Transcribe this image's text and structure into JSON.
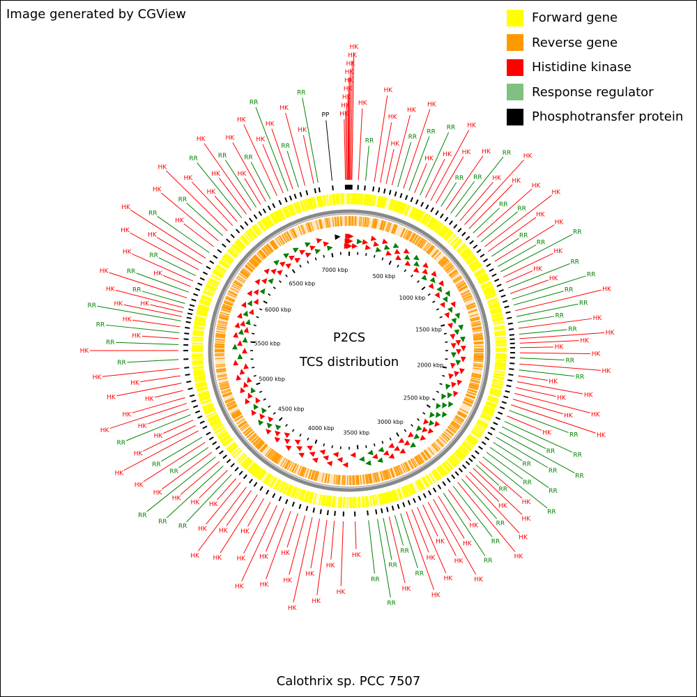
{
  "credit": "Image generated by CGView",
  "genome_name": "Calothrix sp. PCC 7507",
  "center": {
    "line1": "P2CS",
    "line2": "TCS distribution"
  },
  "genome_length_kbp": 7200,
  "colors": {
    "forward": "#ffff00",
    "reverse": "#ff9900",
    "hk": "#ff0000",
    "rr": "#008000",
    "rr_legend": "#80c080",
    "pp": "#000000",
    "backbone": "#888888"
  },
  "legend": [
    {
      "label": "Forward gene",
      "color": "#ffff00"
    },
    {
      "label": "Reverse gene",
      "color": "#ff9900"
    },
    {
      "label": "Histidine kinase",
      "color": "#ff0000"
    },
    {
      "label": "Response regulator",
      "color": "#80c080"
    },
    {
      "label": "Phosphotransfer protein",
      "color": "#000000"
    }
  ],
  "ticks": [
    {
      "kbp": 500,
      "label": "500 kbp"
    },
    {
      "kbp": 1000,
      "label": "1000 kbp"
    },
    {
      "kbp": 1500,
      "label": "1500 kbp"
    },
    {
      "kbp": 2000,
      "label": "2000 kbp"
    },
    {
      "kbp": 2500,
      "label": "2500 kbp"
    },
    {
      "kbp": 3000,
      "label": "3000 kbp"
    },
    {
      "kbp": 3500,
      "label": "3500 kbp"
    },
    {
      "kbp": 4000,
      "label": "4000 kbp"
    },
    {
      "kbp": 4500,
      "label": "4500 kbp"
    },
    {
      "kbp": 5000,
      "label": "5000 kbp"
    },
    {
      "kbp": 5500,
      "label": "5500 kbp"
    },
    {
      "kbp": 6000,
      "label": "6000 kbp"
    },
    {
      "kbp": 6500,
      "label": "6500 kbp"
    },
    {
      "kbp": 7000,
      "label": "7000 kbp"
    }
  ],
  "features": [
    {
      "pos": 7175,
      "type": "HK",
      "label": "HK"
    },
    {
      "pos": 7182,
      "type": "HK",
      "label": "HK"
    },
    {
      "pos": 7188,
      "type": "HK",
      "label": "HK"
    },
    {
      "pos": 7194,
      "type": "HK",
      "label": "HK"
    },
    {
      "pos": 7198,
      "type": "HK",
      "label": "HK"
    },
    {
      "pos": 7200,
      "type": "HK",
      "label": "HK"
    },
    {
      "pos": 5,
      "type": "HK",
      "label": "HK"
    },
    {
      "pos": 12,
      "type": "HK",
      "label": "HK"
    },
    {
      "pos": 18,
      "type": "HK",
      "label": "HK"
    },
    {
      "pos": 62,
      "type": "HK",
      "label": "HK"
    },
    {
      "pos": 110,
      "type": "RR",
      "label": "RR"
    },
    {
      "pos": 7085,
      "type": "PP",
      "label": "PP"
    },
    {
      "pos": 6990,
      "type": "RR",
      "label": "RR"
    },
    {
      "pos": 6960,
      "type": "HK",
      "label": "HK"
    },
    {
      "pos": 6900,
      "type": "HK",
      "label": "HK"
    },
    {
      "pos": 6855,
      "type": "RR",
      "label": "RR"
    },
    {
      "pos": 6815,
      "type": "HK",
      "label": "HK"
    },
    {
      "pos": 6780,
      "type": "RR",
      "label": "RR"
    },
    {
      "pos": 6745,
      "type": "HK",
      "label": "HK"
    },
    {
      "pos": 6700,
      "type": "HK",
      "label": "HK"
    },
    {
      "pos": 6650,
      "type": "RR",
      "label": "RR"
    },
    {
      "pos": 6615,
      "type": "HK",
      "label": "HK"
    },
    {
      "pos": 6575,
      "type": "HK",
      "label": "HK"
    },
    {
      "pos": 6540,
      "type": "RR",
      "label": "RR"
    },
    {
      "pos": 6500,
      "type": "HK",
      "label": "HK"
    },
    {
      "pos": 6460,
      "type": "HK",
      "label": "HK"
    },
    {
      "pos": 6420,
      "type": "RR",
      "label": "RR"
    },
    {
      "pos": 6380,
      "type": "HK",
      "label": "HK"
    },
    {
      "pos": 6340,
      "type": "HK",
      "label": "HK"
    },
    {
      "pos": 6290,
      "type": "HK",
      "label": "HK"
    },
    {
      "pos": 6245,
      "type": "RR",
      "label": "RR"
    },
    {
      "pos": 6200,
      "type": "HK",
      "label": "HK"
    },
    {
      "pos": 6150,
      "type": "HK",
      "label": "HK"
    },
    {
      "pos": 6100,
      "type": "RR",
      "label": "RR"
    },
    {
      "pos": 6055,
      "type": "HK",
      "label": "HK"
    },
    {
      "pos": 6010,
      "type": "HK",
      "label": "HK"
    },
    {
      "pos": 5965,
      "type": "HK",
      "label": "HK"
    },
    {
      "pos": 5920,
      "type": "RR",
      "label": "RR"
    },
    {
      "pos": 5880,
      "type": "HK",
      "label": "HK"
    },
    {
      "pos": 5840,
      "type": "HK",
      "label": "HK"
    },
    {
      "pos": 5800,
      "type": "RR",
      "label": "RR"
    },
    {
      "pos": 5760,
      "type": "HK",
      "label": "HK"
    },
    {
      "pos": 5720,
      "type": "RR",
      "label": "RR"
    },
    {
      "pos": 5690,
      "type": "HK",
      "label": "HK"
    },
    {
      "pos": 5660,
      "type": "HK",
      "label": "HK"
    },
    {
      "pos": 5630,
      "type": "HK",
      "label": "HK"
    },
    {
      "pos": 5600,
      "type": "RR",
      "label": "RR"
    },
    {
      "pos": 5560,
      "type": "HK",
      "label": "HK"
    },
    {
      "pos": 5520,
      "type": "RR",
      "label": "RR"
    },
    {
      "pos": 5480,
      "type": "HK",
      "label": "HK"
    },
    {
      "pos": 5440,
      "type": "RR",
      "label": "RR"
    },
    {
      "pos": 5400,
      "type": "HK",
      "label": "HK"
    },
    {
      "pos": 5340,
      "type": "RR",
      "label": "RR"
    },
    {
      "pos": 5280,
      "type": "HK",
      "label": "HK"
    },
    {
      "pos": 5230,
      "type": "HK",
      "label": "HK"
    },
    {
      "pos": 5180,
      "type": "HK",
      "label": "HK"
    },
    {
      "pos": 5130,
      "type": "HK",
      "label": "HK"
    },
    {
      "pos": 5080,
      "type": "HK",
      "label": "HK"
    },
    {
      "pos": 5040,
      "type": "HK",
      "label": "HK"
    },
    {
      "pos": 5000,
      "type": "HK",
      "label": "HK"
    },
    {
      "pos": 4960,
      "type": "RR",
      "label": "RR"
    },
    {
      "pos": 4920,
      "type": "HK",
      "label": "HK"
    },
    {
      "pos": 4880,
      "type": "HK",
      "label": "HK"
    },
    {
      "pos": 4840,
      "type": "HK",
      "label": "HK"
    },
    {
      "pos": 4790,
      "type": "RR",
      "label": "RR"
    },
    {
      "pos": 4750,
      "type": "HK",
      "label": "HK"
    },
    {
      "pos": 4710,
      "type": "RR",
      "label": "RR"
    },
    {
      "pos": 4670,
      "type": "HK",
      "label": "HK"
    },
    {
      "pos": 4630,
      "type": "RR",
      "label": "RR"
    },
    {
      "pos": 4590,
      "type": "HK",
      "label": "HK"
    },
    {
      "pos": 4550,
      "type": "RR",
      "label": "RR"
    },
    {
      "pos": 4510,
      "type": "HK",
      "label": "HK"
    },
    {
      "pos": 4470,
      "type": "RR",
      "label": "RR"
    },
    {
      "pos": 4430,
      "type": "HK",
      "label": "HK"
    },
    {
      "pos": 4390,
      "type": "HK",
      "label": "HK"
    },
    {
      "pos": 4340,
      "type": "HK",
      "label": "HK"
    },
    {
      "pos": 4300,
      "type": "HK",
      "label": "HK"
    },
    {
      "pos": 4250,
      "type": "HK",
      "label": "HK"
    },
    {
      "pos": 4200,
      "type": "HK",
      "label": "HK"
    },
    {
      "pos": 4150,
      "type": "HK",
      "label": "HK"
    },
    {
      "pos": 4100,
      "type": "HK",
      "label": "HK"
    },
    {
      "pos": 4050,
      "type": "HK",
      "label": "HK"
    },
    {
      "pos": 4000,
      "type": "HK",
      "label": "HK"
    },
    {
      "pos": 3950,
      "type": "HK",
      "label": "HK"
    },
    {
      "pos": 3900,
      "type": "HK",
      "label": "HK"
    },
    {
      "pos": 3850,
      "type": "HK",
      "label": "HK"
    },
    {
      "pos": 3800,
      "type": "HK",
      "label": "HK"
    },
    {
      "pos": 3750,
      "type": "HK",
      "label": "HK"
    },
    {
      "pos": 3700,
      "type": "HK",
      "label": "HK"
    },
    {
      "pos": 3640,
      "type": "HK",
      "label": "HK"
    },
    {
      "pos": 3560,
      "type": "HK",
      "label": "HK"
    },
    {
      "pos": 3470,
      "type": "RR",
      "label": "RR"
    },
    {
      "pos": 3410,
      "type": "RR",
      "label": "RR"
    },
    {
      "pos": 3370,
      "type": "RR",
      "label": "RR"
    },
    {
      "pos": 3330,
      "type": "HK",
      "label": "HK"
    },
    {
      "pos": 3290,
      "type": "RR",
      "label": "RR"
    },
    {
      "pos": 3250,
      "type": "RR",
      "label": "RR"
    },
    {
      "pos": 3210,
      "type": "HK",
      "label": "HK"
    },
    {
      "pos": 3170,
      "type": "HK",
      "label": "HK"
    },
    {
      "pos": 3130,
      "type": "HK",
      "label": "HK"
    },
    {
      "pos": 3090,
      "type": "HK",
      "label": "HK"
    },
    {
      "pos": 3050,
      "type": "HK",
      "label": "HK"
    },
    {
      "pos": 3010,
      "type": "HK",
      "label": "HK"
    },
    {
      "pos": 2970,
      "type": "HK",
      "label": "HK"
    },
    {
      "pos": 2930,
      "type": "RR",
      "label": "RR"
    },
    {
      "pos": 2890,
      "type": "HK",
      "label": "HK"
    },
    {
      "pos": 2850,
      "type": "RR",
      "label": "RR"
    },
    {
      "pos": 2810,
      "type": "HK",
      "label": "HK"
    },
    {
      "pos": 2775,
      "type": "RR",
      "label": "RR"
    },
    {
      "pos": 2740,
      "type": "HK",
      "label": "HK"
    },
    {
      "pos": 2705,
      "type": "HK",
      "label": "HK"
    },
    {
      "pos": 2670,
      "type": "HK",
      "label": "HK"
    },
    {
      "pos": 2640,
      "type": "RR",
      "label": "RR"
    },
    {
      "pos": 2610,
      "type": "HK",
      "label": "HK"
    },
    {
      "pos": 2570,
      "type": "RR",
      "label": "RR"
    },
    {
      "pos": 2530,
      "type": "RR",
      "label": "RR"
    },
    {
      "pos": 2490,
      "type": "RR",
      "label": "RR"
    },
    {
      "pos": 2450,
      "type": "RR",
      "label": "RR"
    },
    {
      "pos": 2410,
      "type": "RR",
      "label": "RR"
    },
    {
      "pos": 2370,
      "type": "RR",
      "label": "RR"
    },
    {
      "pos": 2330,
      "type": "RR",
      "label": "RR"
    },
    {
      "pos": 2290,
      "type": "RR",
      "label": "RR"
    },
    {
      "pos": 2250,
      "type": "HK",
      "label": "HK"
    },
    {
      "pos": 2210,
      "type": "RR",
      "label": "RR"
    },
    {
      "pos": 2170,
      "type": "HK",
      "label": "HK"
    },
    {
      "pos": 2130,
      "type": "HK",
      "label": "HK"
    },
    {
      "pos": 2090,
      "type": "HK",
      "label": "HK"
    },
    {
      "pos": 2050,
      "type": "HK",
      "label": "HK"
    },
    {
      "pos": 2010,
      "type": "HK",
      "label": "HK"
    },
    {
      "pos": 1970,
      "type": "HK",
      "label": "HK"
    },
    {
      "pos": 1930,
      "type": "RR",
      "label": "RR"
    },
    {
      "pos": 1890,
      "type": "HK",
      "label": "HK"
    },
    {
      "pos": 1850,
      "type": "RR",
      "label": "RR"
    },
    {
      "pos": 1815,
      "type": "HK",
      "label": "HK"
    },
    {
      "pos": 1780,
      "type": "HK",
      "label": "HK"
    },
    {
      "pos": 1750,
      "type": "HK",
      "label": "HK"
    },
    {
      "pos": 1720,
      "type": "HK",
      "label": "HK"
    },
    {
      "pos": 1690,
      "type": "RR",
      "label": "RR"
    },
    {
      "pos": 1650,
      "type": "HK",
      "label": "HK"
    },
    {
      "pos": 1610,
      "type": "RR",
      "label": "RR"
    },
    {
      "pos": 1570,
      "type": "RR",
      "label": "RR"
    },
    {
      "pos": 1530,
      "type": "HK",
      "label": "HK"
    },
    {
      "pos": 1490,
      "type": "RR",
      "label": "RR"
    },
    {
      "pos": 1450,
      "type": "RR",
      "label": "RR"
    },
    {
      "pos": 1410,
      "type": "HK",
      "label": "HK"
    },
    {
      "pos": 1370,
      "type": "RR",
      "label": "RR"
    },
    {
      "pos": 1330,
      "type": "HK",
      "label": "HK"
    },
    {
      "pos": 1290,
      "type": "HK",
      "label": "HK"
    },
    {
      "pos": 1250,
      "type": "RR",
      "label": "RR"
    },
    {
      "pos": 1210,
      "type": "RR",
      "label": "RR"
    },
    {
      "pos": 1170,
      "type": "HK",
      "label": "HK"
    },
    {
      "pos": 1130,
      "type": "RR",
      "label": "RR"
    },
    {
      "pos": 1090,
      "type": "HK",
      "label": "HK"
    },
    {
      "pos": 1050,
      "type": "HK",
      "label": "HK"
    },
    {
      "pos": 1010,
      "type": "RR",
      "label": "RR"
    },
    {
      "pos": 970,
      "type": "HK",
      "label": "HK"
    },
    {
      "pos": 930,
      "type": "RR",
      "label": "RR"
    },
    {
      "pos": 890,
      "type": "HK",
      "label": "HK"
    },
    {
      "pos": 850,
      "type": "HK",
      "label": "HK"
    },
    {
      "pos": 810,
      "type": "HK",
      "label": "HK"
    },
    {
      "pos": 770,
      "type": "RR",
      "label": "RR"
    },
    {
      "pos": 730,
      "type": "RR",
      "label": "RR"
    },
    {
      "pos": 690,
      "type": "HK",
      "label": "HK"
    },
    {
      "pos": 650,
      "type": "RR",
      "label": "RR"
    },
    {
      "pos": 610,
      "type": "HK",
      "label": "HK"
    },
    {
      "pos": 570,
      "type": "HK",
      "label": "HK"
    },
    {
      "pos": 530,
      "type": "HK",
      "label": "HK"
    },
    {
      "pos": 490,
      "type": "RR",
      "label": "RR"
    },
    {
      "pos": 450,
      "type": "HK",
      "label": "HK"
    },
    {
      "pos": 410,
      "type": "RR",
      "label": "RR"
    },
    {
      "pos": 370,
      "type": "HK",
      "label": "HK"
    },
    {
      "pos": 330,
      "type": "RR",
      "label": "RR"
    },
    {
      "pos": 290,
      "type": "HK",
      "label": "HK"
    },
    {
      "pos": 250,
      "type": "HK",
      "label": "HK"
    },
    {
      "pos": 210,
      "type": "HK",
      "label": "HK"
    },
    {
      "pos": 170,
      "type": "HK",
      "label": "HK"
    }
  ]
}
